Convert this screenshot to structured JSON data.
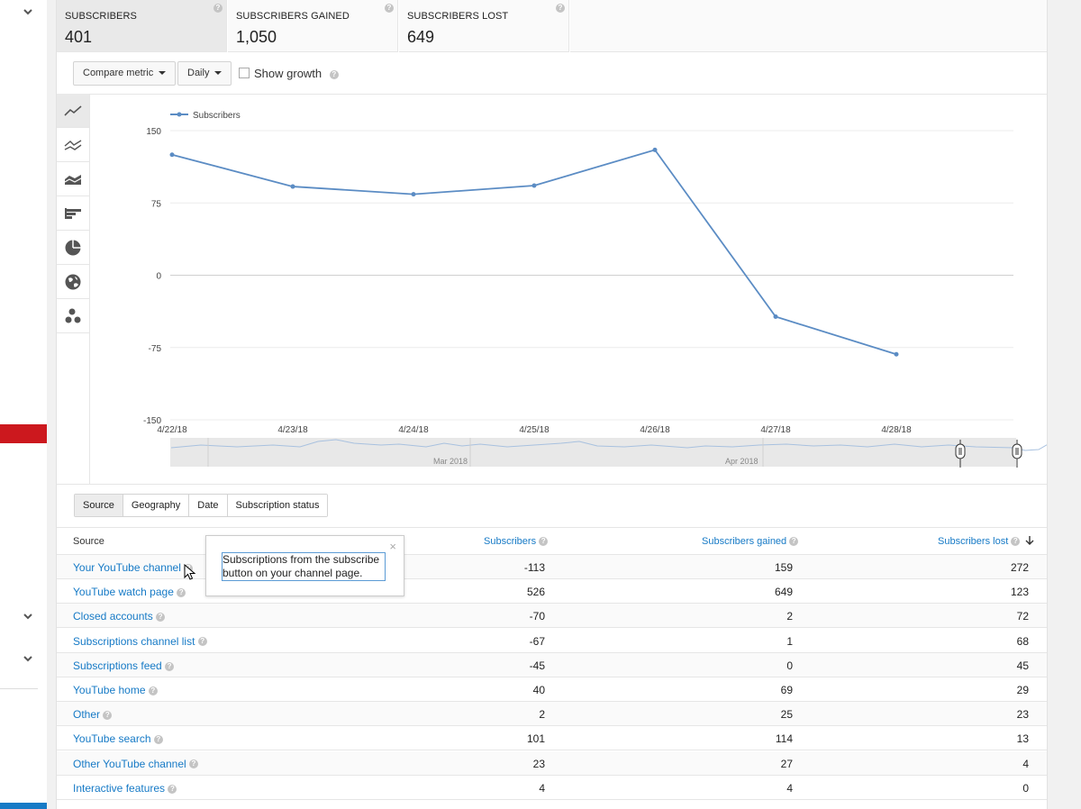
{
  "metrics": [
    {
      "label": "SUBSCRIBERS",
      "value": "401",
      "active": true
    },
    {
      "label": "SUBSCRIBERS GAINED",
      "value": "1,050",
      "active": false
    },
    {
      "label": "SUBSCRIBERS LOST",
      "value": "649",
      "active": false
    }
  ],
  "toolbar": {
    "compare_label": "Compare metric",
    "interval_label": "Daily",
    "growth_label": "Show growth"
  },
  "chart_types": [
    "line-chart-icon",
    "multi-line-icon",
    "stacked-area-icon",
    "bar-chart-icon",
    "pie-chart-icon",
    "globe-icon",
    "bubble-chart-icon"
  ],
  "chart_data": {
    "type": "line",
    "x": [
      "4/22/18",
      "4/23/18",
      "4/24/18",
      "4/25/18",
      "4/26/18",
      "4/27/18",
      "4/28/18"
    ],
    "series": [
      {
        "name": "Subscribers",
        "values": [
          125,
          92,
          84,
          93,
          130,
          -43,
          -82
        ]
      }
    ],
    "yticks": [
      "150",
      "75",
      "0",
      "-75",
      "-150"
    ],
    "ylim": [
      -150,
      150
    ],
    "grid": true,
    "legend": "top-left",
    "color": "#5b8cc4",
    "navigator_labels": [
      "Mar 2018",
      "Apr 2018"
    ]
  },
  "dimensions": [
    {
      "label": "Source",
      "active": true
    },
    {
      "label": "Geography",
      "active": false
    },
    {
      "label": "Date",
      "active": false
    },
    {
      "label": "Subscription status",
      "active": false
    }
  ],
  "table": {
    "headers": {
      "source": "Source",
      "subscribers": "Subscribers",
      "gained": "Subscribers gained",
      "lost": "Subscribers lost"
    },
    "rows": [
      {
        "source": "Your YouTube channel",
        "subscribers": "-113",
        "gained": "159",
        "lost": "272"
      },
      {
        "source": "YouTube watch page",
        "subscribers": "526",
        "gained": "649",
        "lost": "123"
      },
      {
        "source": "Closed accounts",
        "subscribers": "-70",
        "gained": "2",
        "lost": "72"
      },
      {
        "source": "Subscriptions channel list",
        "subscribers": "-67",
        "gained": "1",
        "lost": "68"
      },
      {
        "source": "Subscriptions feed",
        "subscribers": "-45",
        "gained": "0",
        "lost": "45"
      },
      {
        "source": "YouTube home",
        "subscribers": "40",
        "gained": "69",
        "lost": "29"
      },
      {
        "source": "Other",
        "subscribers": "2",
        "gained": "25",
        "lost": "23"
      },
      {
        "source": "YouTube search",
        "subscribers": "101",
        "gained": "114",
        "lost": "13"
      },
      {
        "source": "Other YouTube channel",
        "subscribers": "23",
        "gained": "27",
        "lost": "4"
      },
      {
        "source": "Interactive features",
        "subscribers": "4",
        "gained": "4",
        "lost": "0"
      }
    ]
  },
  "tooltip": {
    "text": "Subscriptions from the subscribe button on your channel page.",
    "close": "×"
  }
}
